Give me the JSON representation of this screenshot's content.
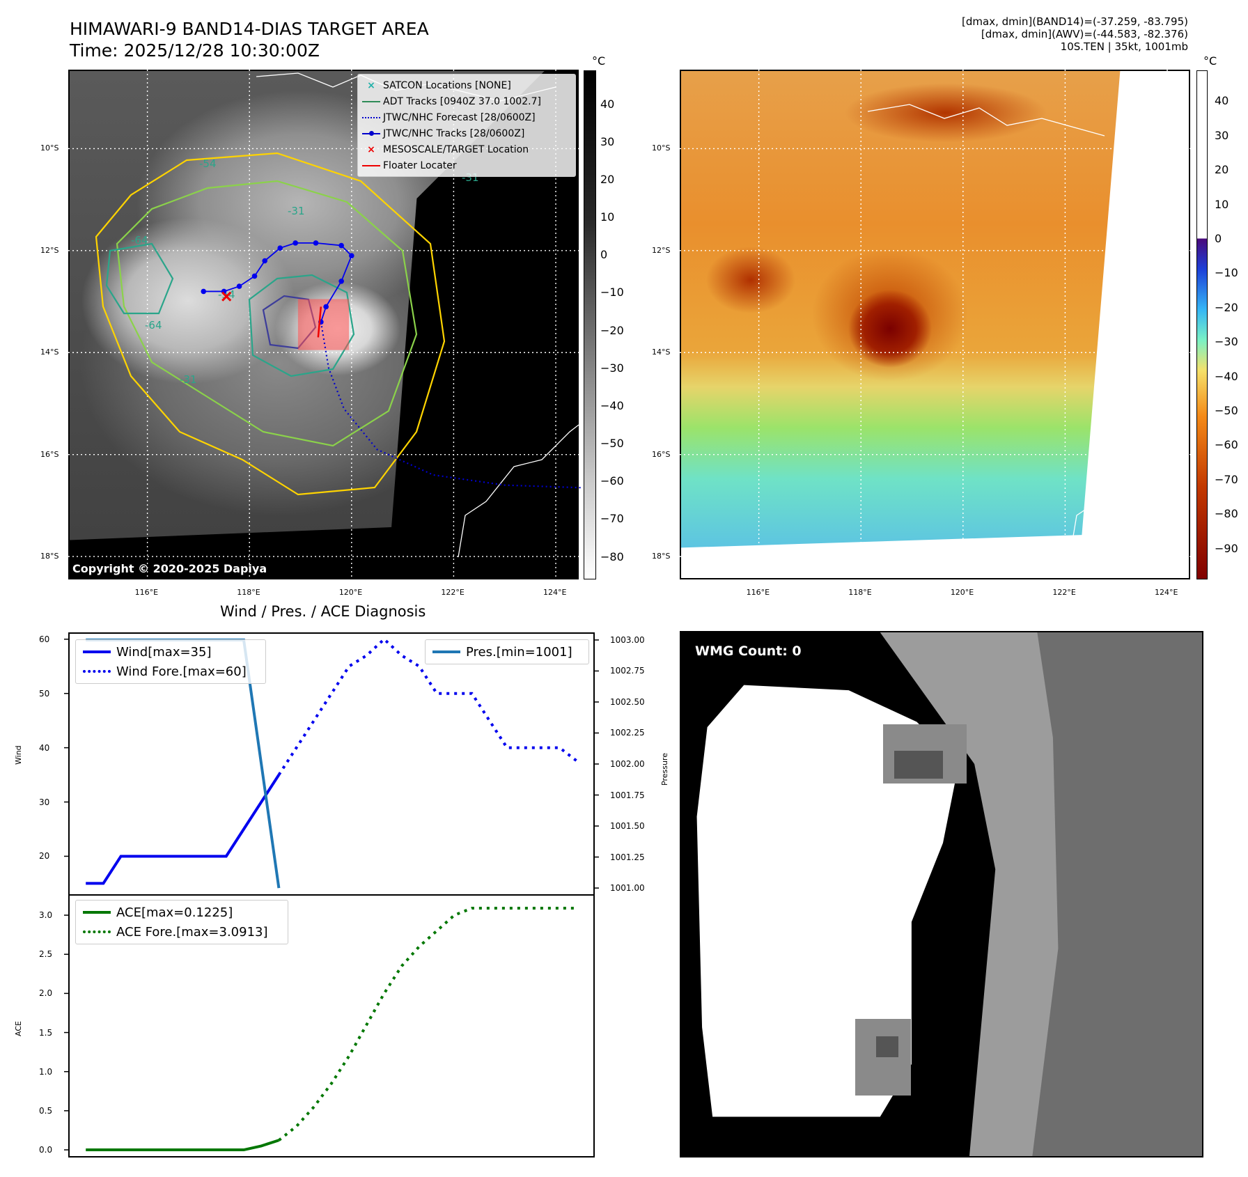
{
  "header": {
    "title_line1": "HIMAWARI-9 BAND14-DIAS TARGET AREA",
    "title_line2": "Time: 2025/12/28 10:30:00Z",
    "meta_line1": "[dmax, dmin](BAND14)=(-37.259, -83.795)",
    "meta_line2": "[dmax, dmin](AWV)=(-44.583, -82.376)",
    "meta_line3": "10S.TEN | 35kt, 1001mb"
  },
  "map": {
    "lat_labels": [
      "10°S",
      "12°S",
      "14°S",
      "16°S",
      "18°S"
    ],
    "lon_labels": [
      "116°E",
      "118°E",
      "120°E",
      "122°E",
      "124°E"
    ],
    "copyright": "Copyright © 2020-2025 Dapiya",
    "contour_labels": [
      "-54",
      "-31",
      "-64",
      "-54",
      "-31",
      "-64",
      "-31"
    ],
    "legend": [
      {
        "label": "SATCON Locations [NONE]",
        "symbol": "x-marker",
        "color": "#20b2aa"
      },
      {
        "label": "ADT Tracks [0940Z 37.0 1002.7]",
        "symbol": "solid-line",
        "color": "#2e8b57"
      },
      {
        "label": "JTWC/NHC Forecast [28/0600Z]",
        "symbol": "dotted-line",
        "color": "#0000cc"
      },
      {
        "label": "JTWC/NHC Tracks [28/0600Z]",
        "symbol": "dot-line",
        "color": "#0000cc"
      },
      {
        "label": "MESOSCALE/TARGET Location",
        "symbol": "x-marker",
        "color": "#ee0000"
      },
      {
        "label": "Floater Locater",
        "symbol": "solid-line",
        "color": "#ee0000"
      }
    ],
    "track": [
      [
        117.1,
        12.8
      ],
      [
        117.5,
        12.8
      ],
      [
        117.8,
        12.7
      ],
      [
        118.1,
        12.5
      ],
      [
        118.3,
        12.2
      ],
      [
        118.6,
        11.95
      ],
      [
        118.9,
        11.85
      ],
      [
        119.3,
        11.85
      ],
      [
        119.8,
        11.9
      ],
      [
        120.0,
        12.1
      ],
      [
        119.8,
        12.6
      ],
      [
        119.5,
        13.1
      ],
      [
        119.4,
        13.4
      ]
    ],
    "forecast": [
      [
        119.4,
        13.4
      ],
      [
        119.55,
        14.3
      ],
      [
        119.85,
        15.1
      ],
      [
        120.5,
        15.9
      ],
      [
        121.6,
        16.4
      ],
      [
        123.0,
        16.6
      ],
      [
        124.5,
        16.65
      ]
    ],
    "target_marker": [
      117.55,
      12.9
    ],
    "target_box": {
      "lon0": 118.95,
      "lon1": 119.95,
      "lat0": 12.95,
      "lat1": 13.95
    }
  },
  "colorbar_left": {
    "unit": "°C",
    "ticks": [
      "40",
      "30",
      "20",
      "10",
      "0",
      "−10",
      "−20",
      "−30",
      "−40",
      "−50",
      "−60",
      "−70",
      "−80"
    ]
  },
  "colorbar_right": {
    "unit": "°C",
    "ticks": [
      "40",
      "30",
      "20",
      "10",
      "0",
      "−10",
      "−20",
      "−30",
      "−40",
      "−50",
      "−60",
      "−70",
      "−80",
      "−90"
    ]
  },
  "diag": {
    "title": "Wind / Pres. / ACE Diagnosis",
    "wind_ylabel": "Wind",
    "pres_ylabel": "Pressure",
    "ace_ylabel": "ACE",
    "wind_ticks": [
      "60",
      "50",
      "40",
      "30",
      "20"
    ],
    "pres_ticks": [
      "1003.00",
      "1002.75",
      "1002.50",
      "1002.25",
      "1002.00",
      "1001.75",
      "1001.50",
      "1001.25",
      "1001.00"
    ],
    "ace_ticks": [
      "3.0",
      "2.5",
      "2.0",
      "1.5",
      "1.0",
      "0.5",
      "0.0"
    ],
    "wind_legend": [
      "Wind[max=35]",
      "Wind Fore.[max=60]"
    ],
    "pres_legend": [
      "Pres.[min=1001]"
    ],
    "ace_legend": [
      "ACE[max=0.1225]",
      "ACE Fore.[max=3.0913]"
    ]
  },
  "chart_data": {
    "type": "line",
    "title": "Wind / Pres. / ACE Diagnosis",
    "xlabel": "",
    "series": [
      {
        "name": "Wind[max=35]",
        "axis": "wind",
        "x": [
          0,
          1,
          2,
          3,
          4,
          5,
          6,
          7,
          8,
          9,
          10,
          11
        ],
        "values": [
          15,
          15,
          20,
          20,
          20,
          20,
          20,
          20,
          20,
          25,
          30,
          35
        ]
      },
      {
        "name": "Wind Fore.[max=60]",
        "axis": "wind",
        "x": [
          11,
          12,
          13,
          14,
          15,
          16,
          17,
          18,
          19,
          20,
          21,
          22,
          23,
          24,
          25,
          26,
          27,
          28
        ],
        "values": [
          35,
          40,
          45,
          50,
          55,
          57,
          60,
          57,
          55,
          50,
          50,
          50,
          45,
          40,
          40,
          40,
          40,
          37.5
        ]
      },
      {
        "name": "Pres.[min=1001]",
        "axis": "pressure",
        "x": [
          0,
          1,
          2,
          3,
          4,
          5,
          6,
          7,
          8,
          9,
          10,
          11
        ],
        "values": [
          1003,
          1003,
          1003,
          1003,
          1003,
          1003,
          1003,
          1003,
          1003,
          1003,
          1002,
          1001
        ]
      },
      {
        "name": "ACE[max=0.1225]",
        "axis": "ace",
        "x": [
          0,
          1,
          2,
          3,
          4,
          5,
          6,
          7,
          8,
          9,
          10,
          11
        ],
        "values": [
          0,
          0,
          0,
          0,
          0,
          0,
          0,
          0,
          0,
          0,
          0.05,
          0.1225
        ]
      },
      {
        "name": "ACE Fore.[max=3.0913]",
        "axis": "ace",
        "x": [
          11,
          12,
          13,
          14,
          15,
          16,
          17,
          18,
          19,
          20,
          21,
          22,
          23,
          24,
          25,
          26,
          27,
          28
        ],
        "values": [
          0.1225,
          0.3,
          0.55,
          0.85,
          1.2,
          1.6,
          2.0,
          2.35,
          2.6,
          2.8,
          3.0,
          3.09,
          3.09,
          3.09,
          3.09,
          3.09,
          3.09,
          3.09
        ]
      }
    ],
    "ylim_wind": [
      13,
      61
    ],
    "ylim_pressure": [
      1000.95,
      1003.05
    ],
    "ylim_ace": [
      -0.08,
      3.25
    ],
    "xlim": [
      -1,
      29
    ]
  },
  "wmg": {
    "label": "WMG Count: 0"
  }
}
